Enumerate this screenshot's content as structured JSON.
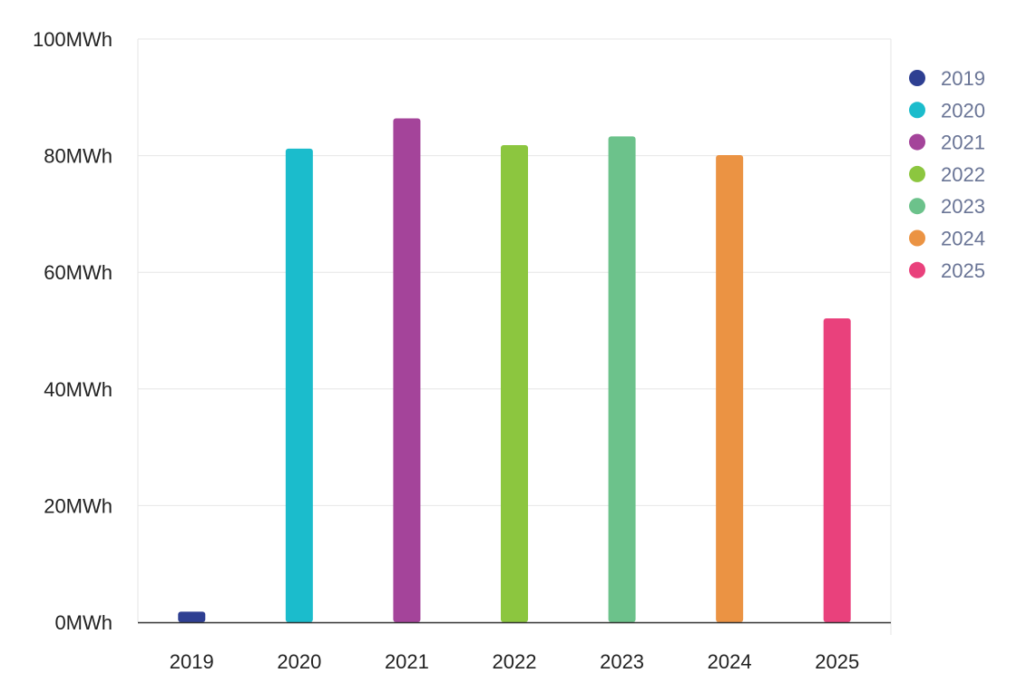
{
  "chart_data": {
    "type": "bar",
    "title": "",
    "xlabel": "",
    "ylabel": "",
    "categories": [
      "2019",
      "2020",
      "2021",
      "2022",
      "2023",
      "2024",
      "2025"
    ],
    "values": [
      1.8,
      81.2,
      86.4,
      81.8,
      83.3,
      80.1,
      52.1
    ],
    "unit": "MWh",
    "ylim": [
      0,
      100
    ],
    "yticks": [
      0,
      20,
      40,
      60,
      80,
      100
    ],
    "ytick_labels": [
      "0MWh",
      "20MWh",
      "40MWh",
      "60MWh",
      "80MWh",
      "100MWh"
    ],
    "colors": [
      "#2e3f92",
      "#1bbccc",
      "#a4449a",
      "#8cc63f",
      "#6cc28b",
      "#eb9343",
      "#e9417c"
    ],
    "grid": true,
    "legend": {
      "placement": "right",
      "entries": [
        "2019",
        "2020",
        "2021",
        "2022",
        "2023",
        "2024",
        "2025"
      ]
    }
  }
}
